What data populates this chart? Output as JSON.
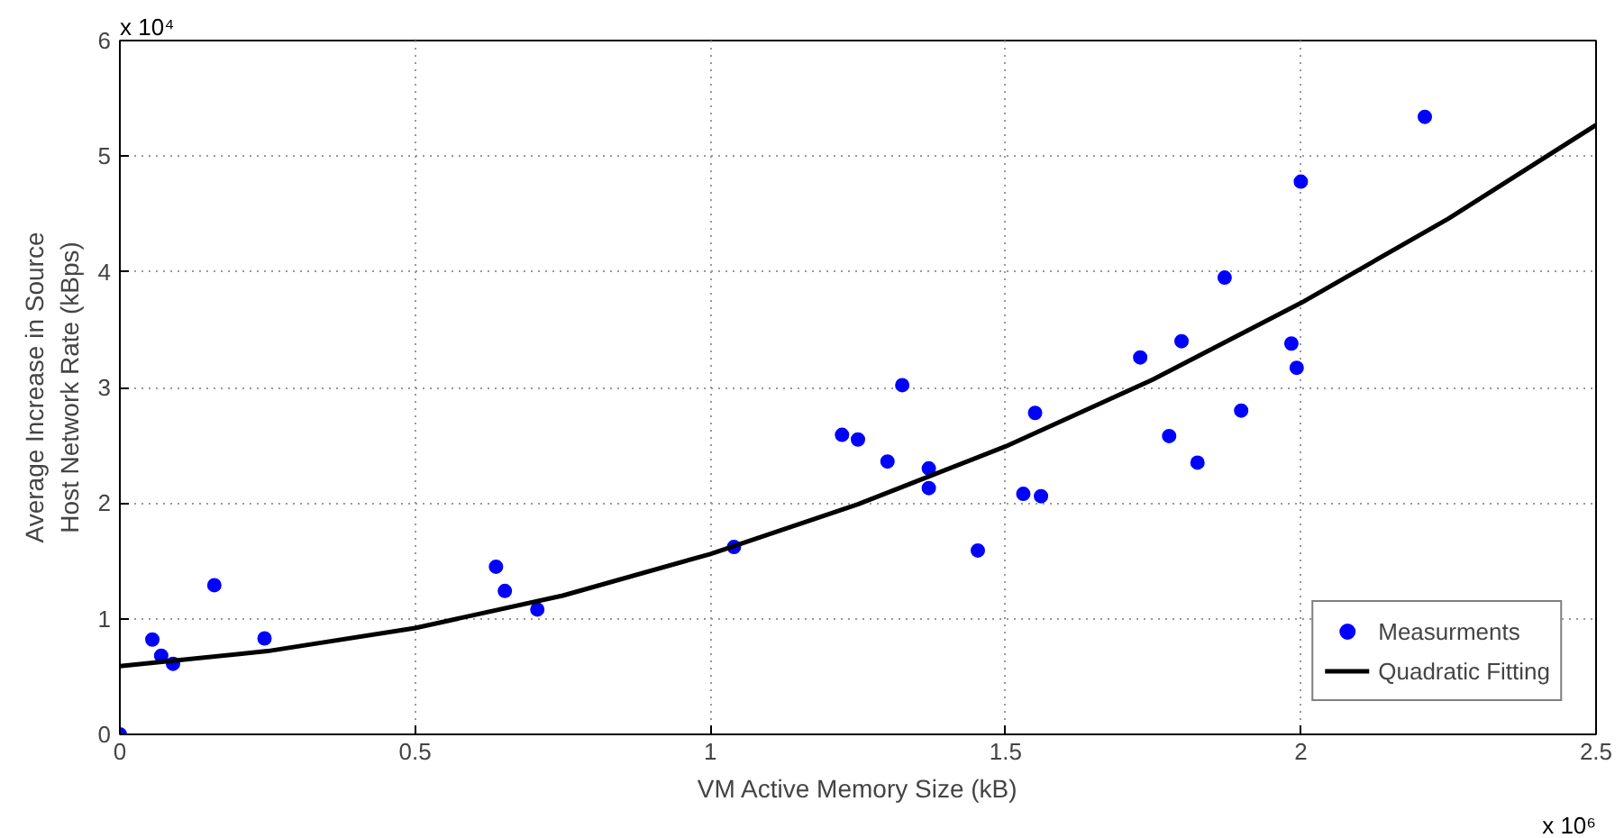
{
  "chart_data": {
    "type": "scatter",
    "xlabel": "VM Active Memory Size (kB)",
    "ylabel": "Average Increase in Source\nHost Network Rate (kBps)",
    "xlim": [
      0,
      2.5
    ],
    "ylim": [
      0,
      6
    ],
    "xticks": [
      0,
      0.5,
      1,
      1.5,
      2,
      2.5
    ],
    "yticks": [
      0,
      1,
      2,
      3,
      4,
      5,
      6
    ],
    "annotations": [
      "x 10⁴",
      "x 10⁶"
    ],
    "grid": true,
    "legend": "bottom right",
    "series": [
      {
        "name": "Measurments",
        "color": "#0000ff",
        "marker": "circle",
        "x": [
          0,
          0.055,
          0.07,
          0.09,
          0.16,
          0.245,
          0.637,
          0.652,
          0.707,
          1.04,
          1.223,
          1.25,
          1.3,
          1.325,
          1.37,
          1.37,
          1.453,
          1.53,
          1.55,
          1.56,
          1.728,
          1.777,
          1.798,
          1.825,
          1.871,
          1.899,
          1.984,
          1.993,
          2.0,
          2.21
        ],
        "values": [
          0,
          0.82,
          0.68,
          0.61,
          1.29,
          0.83,
          1.45,
          1.24,
          1.08,
          1.62,
          2.59,
          2.55,
          2.36,
          3.02,
          2.3,
          2.13,
          1.59,
          2.08,
          2.78,
          2.06,
          3.26,
          2.58,
          3.4,
          2.35,
          3.95,
          2.8,
          3.38,
          3.17,
          4.78,
          5.34
        ]
      },
      {
        "name": "Quadratic Fitting",
        "color": "#000000",
        "type": "line",
        "marker": "none",
        "x": [
          0,
          0.25,
          0.5,
          0.75,
          1,
          1.25,
          1.5,
          1.75,
          2,
          2.25,
          2.5
        ],
        "values": [
          0.59,
          0.72,
          0.92,
          1.2,
          1.56,
          1.99,
          2.49,
          3.07,
          3.73,
          4.46,
          5.27
        ]
      }
    ]
  }
}
